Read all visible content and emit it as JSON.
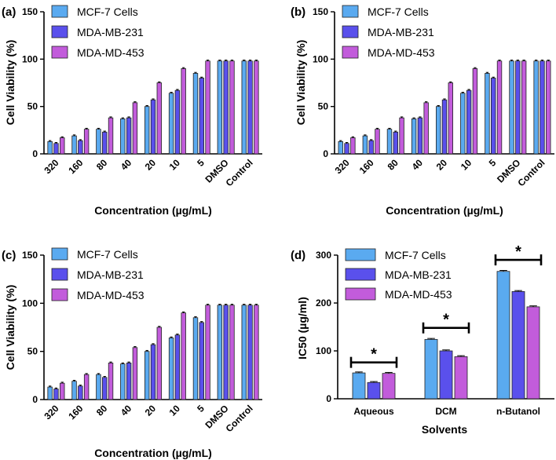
{
  "chart_data": [
    {
      "type": "bar",
      "panel_label": "(a)",
      "categories": [
        "320",
        "160",
        "80",
        "40",
        "20",
        "10",
        "5",
        "DMSO",
        "Control"
      ],
      "series": [
        {
          "name": "MCF-7 Cells",
          "color": "#5AAAF0",
          "values": [
            13,
            19,
            26,
            37,
            50,
            64,
            85,
            98,
            98
          ],
          "errors": [
            1,
            1,
            1,
            1,
            1,
            1,
            1,
            1,
            1
          ]
        },
        {
          "name": "MDA-MB-231",
          "color": "#5A50EC",
          "values": [
            11,
            14,
            23,
            38,
            57,
            67,
            80,
            98,
            98
          ],
          "errors": [
            1,
            1,
            1,
            1,
            1,
            1,
            1,
            1,
            1
          ]
        },
        {
          "name": "MDA-MD-453",
          "color": "#C25CDB",
          "values": [
            17,
            26,
            38,
            54,
            75,
            90,
            98,
            98,
            98
          ],
          "errors": [
            1,
            1,
            1,
            1,
            1,
            1,
            1,
            1,
            1
          ]
        }
      ],
      "xlabel": "Concentration (µg/mL)",
      "ylabel": "Cell Viability (%)",
      "ylim": [
        0,
        150
      ],
      "yticks": [
        "0",
        "50",
        "100",
        "150"
      ],
      "legend_position": "top-left"
    },
    {
      "type": "bar",
      "panel_label": "(b)",
      "categories": [
        "320",
        "160",
        "80",
        "40",
        "20",
        "10",
        "5",
        "DMSO",
        "Control"
      ],
      "series": [
        {
          "name": "MCF-7 Cells",
          "color": "#5AAAF0",
          "values": [
            13,
            19,
            26,
            37,
            50,
            64,
            85,
            98,
            98
          ],
          "errors": [
            1,
            1,
            1,
            1,
            1,
            1,
            1,
            1,
            1
          ]
        },
        {
          "name": "MDA-MB-231",
          "color": "#5A50EC",
          "values": [
            11,
            14,
            23,
            38,
            57,
            67,
            80,
            98,
            98
          ],
          "errors": [
            1,
            1,
            1,
            1,
            1,
            1,
            1,
            1,
            1
          ]
        },
        {
          "name": "MDA-MD-453",
          "color": "#C25CDB",
          "values": [
            17,
            26,
            38,
            54,
            75,
            90,
            98,
            98,
            98
          ],
          "errors": [
            1,
            1,
            1,
            1,
            1,
            1,
            1,
            1,
            1
          ]
        }
      ],
      "xlabel": "Concentration (µg/mL)",
      "ylabel": "Cell Viability (%)",
      "ylim": [
        0,
        150
      ],
      "yticks": [
        "0",
        "50",
        "100",
        "150"
      ],
      "legend_position": "top-left"
    },
    {
      "type": "bar",
      "panel_label": "(c)",
      "categories": [
        "320",
        "160",
        "80",
        "40",
        "20",
        "10",
        "5",
        "DMSO",
        "Control"
      ],
      "series": [
        {
          "name": "MCF-7 Cells",
          "color": "#5AAAF0",
          "values": [
            13,
            19,
            26,
            37,
            50,
            64,
            85,
            98,
            98
          ],
          "errors": [
            1,
            1,
            1,
            1,
            1,
            1,
            1,
            1,
            1
          ]
        },
        {
          "name": "MDA-MB-231",
          "color": "#5A50EC",
          "values": [
            11,
            14,
            23,
            38,
            57,
            67,
            80,
            98,
            98
          ],
          "errors": [
            1,
            1,
            1,
            1,
            1,
            1,
            1,
            1,
            1
          ]
        },
        {
          "name": "MDA-MD-453",
          "color": "#C25CDB",
          "values": [
            17,
            26,
            38,
            54,
            75,
            90,
            98,
            98,
            98
          ],
          "errors": [
            1,
            1,
            1,
            1,
            1,
            1,
            1,
            1,
            1
          ]
        }
      ],
      "xlabel": "Concentration (µg/mL)",
      "ylabel": "Cell Viability (%)",
      "ylim": [
        0,
        150
      ],
      "yticks": [
        "0",
        "50",
        "100",
        "150"
      ],
      "legend_position": "top-left"
    },
    {
      "type": "bar",
      "panel_label": "(d)",
      "categories": [
        "Aqueous",
        "DCM",
        "n-Butanol"
      ],
      "series": [
        {
          "name": "MCF-7 Cells",
          "color": "#5AAAF0",
          "values": [
            54,
            124,
            266
          ],
          "errors": [
            2,
            2,
            2
          ]
        },
        {
          "name": "MDA-MB-231",
          "color": "#5A50EC",
          "values": [
            34,
            100,
            224
          ],
          "errors": [
            2,
            2,
            2
          ]
        },
        {
          "name": "MDA-MD-453",
          "color": "#C25CDB",
          "values": [
            53,
            88,
            192
          ],
          "errors": [
            2,
            2,
            2
          ]
        }
      ],
      "xlabel": "Solvents",
      "ylabel": "IC50  (µg/ml)",
      "ylim": [
        0,
        300
      ],
      "yticks": [
        "0",
        "100",
        "200",
        "300"
      ],
      "legend_position": "top-left",
      "significance": [
        {
          "category": "Aqueous",
          "label": "*",
          "level": 76
        },
        {
          "category": "DCM",
          "label": "*",
          "level": 148
        },
        {
          "category": "n-Butanol",
          "label": "*",
          "level": 290
        }
      ]
    }
  ]
}
